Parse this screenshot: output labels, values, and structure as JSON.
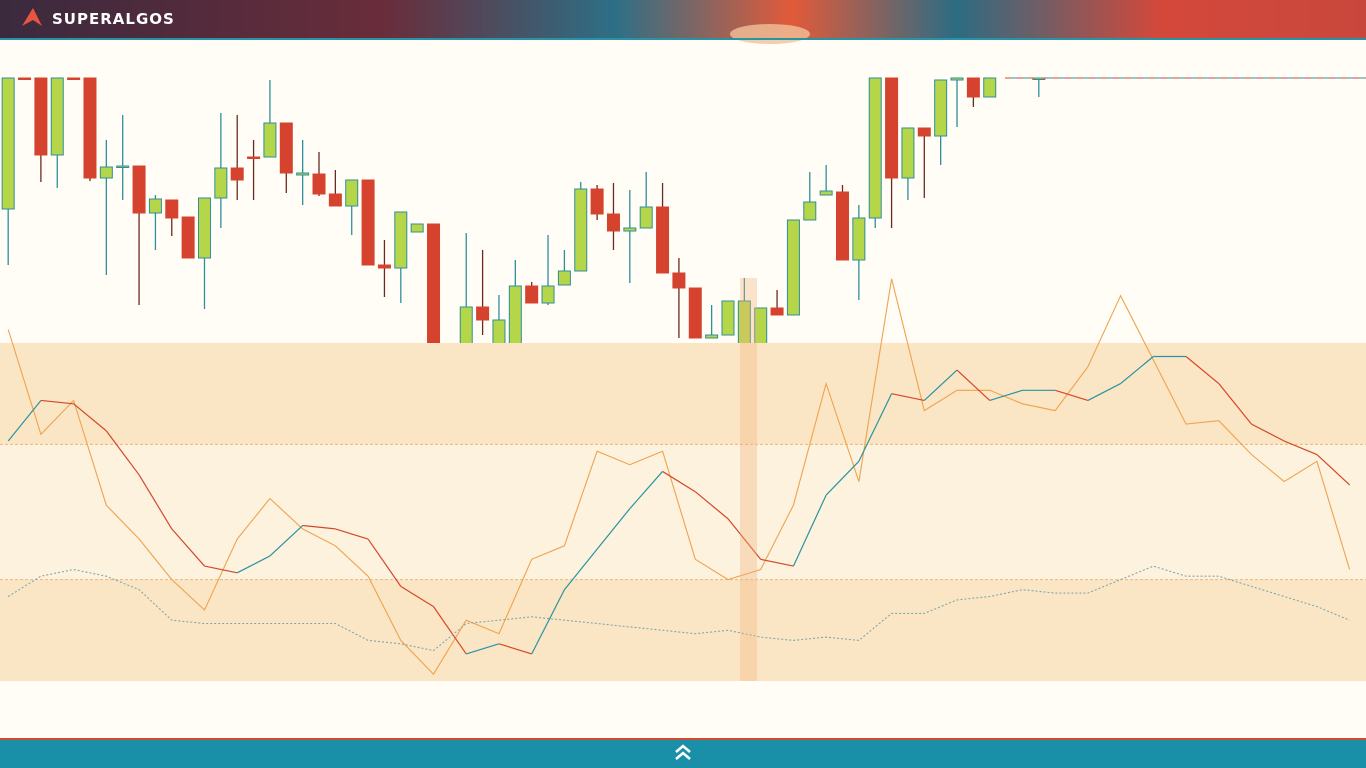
{
  "header": {
    "logo": "SUPERALGOS"
  },
  "chart_data": [
    {
      "type": "candlestick",
      "xlim": [
        -0.5,
        83
      ],
      "ylim": [
        0,
        402
      ],
      "up_color": "#b6d64a",
      "up_edge": "#2d8f9c",
      "down_color": "#d5432f",
      "open": [
        271,
        402,
        402,
        325,
        402,
        402,
        302,
        313,
        314,
        267,
        280,
        263,
        222,
        282,
        312,
        323,
        323,
        357,
        305,
        306,
        286,
        274,
        300,
        215,
        212,
        248,
        256,
        66,
        97,
        173,
        125,
        125,
        194,
        177,
        195,
        209,
        291,
        266,
        249,
        252,
        273,
        207,
        192,
        142,
        145,
        130,
        130,
        172,
        165,
        260,
        285,
        288,
        220,
        262,
        402,
        302,
        352,
        344,
        400,
        402,
        383,
        null,
        null,
        402
      ],
      "high": [
        402,
        402,
        402,
        402,
        402,
        402,
        340,
        365,
        314,
        285,
        280,
        263,
        282,
        367,
        365,
        340,
        400,
        357,
        340,
        328,
        310,
        300,
        300,
        240,
        268,
        256,
        256,
        97,
        247,
        230,
        185,
        220,
        198,
        245,
        230,
        298,
        295,
        297,
        290,
        308,
        297,
        222,
        192,
        175,
        179,
        202,
        172,
        190,
        260,
        308,
        315,
        295,
        275,
        402,
        402,
        352,
        352,
        400,
        402,
        402,
        402,
        null,
        null,
        402
      ],
      "low": [
        215,
        401,
        298,
        292,
        401,
        299,
        205,
        280,
        175,
        230,
        244,
        222,
        171,
        252,
        280,
        280,
        323,
        287,
        275,
        284,
        274,
        245,
        215,
        183,
        177,
        248,
        42,
        2,
        97,
        145,
        125,
        125,
        177,
        175,
        195,
        209,
        260,
        230,
        197,
        252,
        207,
        142,
        142,
        142,
        145,
        112,
        120,
        165,
        165,
        260,
        285,
        220,
        180,
        252,
        252,
        280,
        282,
        315,
        353,
        373,
        383,
        null,
        null,
        383
      ],
      "close": [
        402,
        401,
        325,
        402,
        401,
        302,
        313,
        314,
        267,
        281,
        262,
        222,
        282,
        312,
        300,
        322,
        357,
        307,
        307,
        286,
        274,
        300,
        215,
        212,
        268,
        256,
        66,
        97,
        173,
        160,
        160,
        194,
        177,
        194,
        209,
        291,
        266,
        249,
        252,
        273,
        207,
        192,
        142,
        145,
        179,
        179,
        172,
        165,
        260,
        278,
        289,
        220,
        262,
        402,
        302,
        352,
        344,
        400,
        402,
        383,
        402,
        null,
        null,
        402
      ]
    },
    {
      "type": "line",
      "xlim": [
        -0.5,
        83
      ],
      "ylim": [
        0,
        100
      ],
      "bands": [
        30,
        70
      ],
      "band_color": "#fae6c4",
      "inner_band_color": "#fcf2de",
      "x": [
        0,
        2,
        4,
        6,
        8,
        10,
        12,
        14,
        16,
        18,
        20,
        22,
        24,
        26,
        28,
        30,
        32,
        34,
        36,
        38,
        40,
        42,
        44,
        46,
        48,
        50,
        52,
        54,
        56,
        58,
        60,
        62,
        64,
        66,
        68,
        70,
        72,
        74,
        76,
        78,
        80,
        82
      ],
      "series": [
        {
          "color": "#f0a24e",
          "values": [
            104,
            73,
            83,
            52,
            42,
            30,
            21,
            42,
            54,
            45,
            40,
            31,
            12,
            2,
            18,
            14,
            36,
            40,
            68,
            64,
            68,
            36,
            30,
            33,
            52,
            88,
            59,
            119,
            80,
            86,
            86,
            82,
            80,
            93,
            114,
            95,
            76,
            77,
            67,
            59,
            65,
            33
          ]
        },
        {
          "up_color": "#2a93a3",
          "down_color": "#d5482b",
          "values": [
            71,
            83,
            82,
            74,
            61,
            45,
            34,
            32,
            37,
            46,
            45,
            42,
            28,
            22,
            8,
            11,
            8,
            27,
            39,
            51,
            62,
            56,
            48,
            36,
            34,
            55,
            65,
            85,
            83,
            92,
            83,
            86,
            86,
            83,
            88,
            96,
            96,
            88,
            76,
            71,
            67,
            58
          ]
        },
        {
          "color": "#7fa6ad",
          "dash": true,
          "values": [
            25,
            31,
            33,
            31,
            27,
            18,
            17,
            17,
            17,
            17,
            17,
            12,
            11,
            9,
            17,
            18,
            19,
            18,
            17,
            16,
            15,
            14,
            15,
            13,
            12,
            13,
            12,
            20,
            20,
            24,
            25,
            27,
            26,
            26,
            30,
            34,
            31,
            31,
            28,
            25,
            22,
            18
          ]
        }
      ]
    }
  ]
}
